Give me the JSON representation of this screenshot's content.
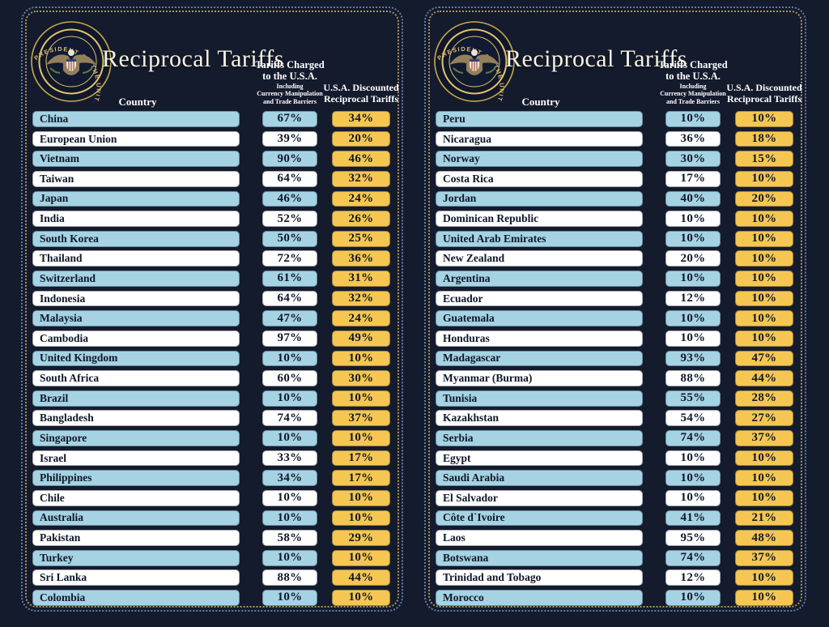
{
  "header": {
    "title": "Reciprocal Tariffs",
    "seal_text": "PRESIDENT OF THE UNITED STATES · ★ · SEAL OF THE",
    "columns": {
      "country": "Country",
      "charged_line1": "Tariffs Charged",
      "charged_line2": "to the U.S.A.",
      "charged_sub1": "Including",
      "charged_sub2": "Currency Manipulation",
      "charged_sub3": "and Trade Barriers",
      "discounted_line1": "U.S.A. Discounted",
      "discounted_line2": "Reciprocal Tariffs"
    }
  },
  "colors": {
    "background": "#141b2d",
    "row_blue": "#a5d3e3",
    "row_white": "#ffffff",
    "cell_gold": "#f5c752",
    "text_dark": "#0f1729",
    "title_cream": "#f7f2e2",
    "border_outer_dotted": "#5e7ea9",
    "border_inner_dotted": "#a8965e"
  },
  "chart_data": {
    "type": "table",
    "title": "Reciprocal Tariffs",
    "columns": [
      "Country",
      "Tariffs Charged to the U.S.A. Including Currency Manipulation and Trade Barriers",
      "U.S.A. Discounted Reciprocal Tariffs"
    ],
    "panels": [
      {
        "rows": [
          [
            "China",
            "67%",
            "34%"
          ],
          [
            "European Union",
            "39%",
            "20%"
          ],
          [
            "Vietnam",
            "90%",
            "46%"
          ],
          [
            "Taiwan",
            "64%",
            "32%"
          ],
          [
            "Japan",
            "46%",
            "24%"
          ],
          [
            "India",
            "52%",
            "26%"
          ],
          [
            "South Korea",
            "50%",
            "25%"
          ],
          [
            "Thailand",
            "72%",
            "36%"
          ],
          [
            "Switzerland",
            "61%",
            "31%"
          ],
          [
            "Indonesia",
            "64%",
            "32%"
          ],
          [
            "Malaysia",
            "47%",
            "24%"
          ],
          [
            "Cambodia",
            "97%",
            "49%"
          ],
          [
            "United Kingdom",
            "10%",
            "10%"
          ],
          [
            "South Africa",
            "60%",
            "30%"
          ],
          [
            "Brazil",
            "10%",
            "10%"
          ],
          [
            "Bangladesh",
            "74%",
            "37%"
          ],
          [
            "Singapore",
            "10%",
            "10%"
          ],
          [
            "Israel",
            "33%",
            "17%"
          ],
          [
            "Philippines",
            "34%",
            "17%"
          ],
          [
            "Chile",
            "10%",
            "10%"
          ],
          [
            "Australia",
            "10%",
            "10%"
          ],
          [
            "Pakistan",
            "58%",
            "29%"
          ],
          [
            "Turkey",
            "10%",
            "10%"
          ],
          [
            "Sri Lanka",
            "88%",
            "44%"
          ],
          [
            "Colombia",
            "10%",
            "10%"
          ]
        ]
      },
      {
        "rows": [
          [
            "Peru",
            "10%",
            "10%"
          ],
          [
            "Nicaragua",
            "36%",
            "18%"
          ],
          [
            "Norway",
            "30%",
            "15%"
          ],
          [
            "Costa Rica",
            "17%",
            "10%"
          ],
          [
            "Jordan",
            "40%",
            "20%"
          ],
          [
            "Dominican Republic",
            "10%",
            "10%"
          ],
          [
            "United Arab Emirates",
            "10%",
            "10%"
          ],
          [
            "New Zealand",
            "20%",
            "10%"
          ],
          [
            "Argentina",
            "10%",
            "10%"
          ],
          [
            "Ecuador",
            "12%",
            "10%"
          ],
          [
            "Guatemala",
            "10%",
            "10%"
          ],
          [
            "Honduras",
            "10%",
            "10%"
          ],
          [
            "Madagascar",
            "93%",
            "47%"
          ],
          [
            "Myanmar (Burma)",
            "88%",
            "44%"
          ],
          [
            "Tunisia",
            "55%",
            "28%"
          ],
          [
            "Kazakhstan",
            "54%",
            "27%"
          ],
          [
            "Serbia",
            "74%",
            "37%"
          ],
          [
            "Egypt",
            "10%",
            "10%"
          ],
          [
            "Saudi Arabia",
            "10%",
            "10%"
          ],
          [
            "El Salvador",
            "10%",
            "10%"
          ],
          [
            "Côte d`Ivoire",
            "41%",
            "21%"
          ],
          [
            "Laos",
            "95%",
            "48%"
          ],
          [
            "Botswana",
            "74%",
            "37%"
          ],
          [
            "Trinidad and Tobago",
            "12%",
            "10%"
          ],
          [
            "Morocco",
            "10%",
            "10%"
          ]
        ]
      }
    ]
  }
}
